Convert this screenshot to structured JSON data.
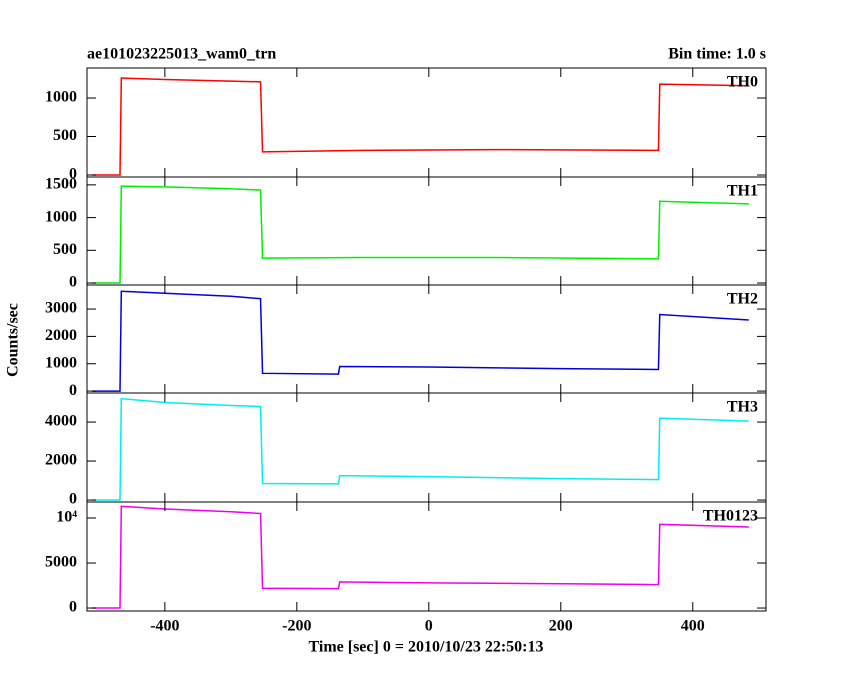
{
  "page": {
    "title": "ae101023225013_wam0_trn",
    "bin_time": "Bin time: 1.0 s",
    "ylabel": "Counts/sec",
    "xlabel": "Time [sec] 0 = 2010/10/23 22:50:13"
  },
  "chart_data": [
    {
      "type": "line",
      "x": [
        -510,
        -468,
        -466,
        -400,
        -300,
        -255,
        -252,
        -100,
        100,
        348,
        350,
        485
      ],
      "series": [
        {
          "name": "TH0",
          "color": "#ff0000",
          "values": [
            0,
            0,
            1260,
            1240,
            1220,
            1210,
            300,
            320,
            330,
            320,
            1180,
            1160
          ]
        }
      ],
      "xlim": [
        -518,
        511
      ],
      "xticks": [
        -400,
        -200,
        0,
        200,
        400
      ],
      "ylim": [
        -26,
        1390
      ],
      "yticks": [
        0,
        500,
        1000
      ]
    },
    {
      "type": "line",
      "x": [
        -510,
        -468,
        -466,
        -400,
        -300,
        -255,
        -252,
        -100,
        100,
        348,
        350,
        485
      ],
      "series": [
        {
          "name": "TH1",
          "color": "#00ee00",
          "values": [
            0,
            0,
            1480,
            1470,
            1440,
            1420,
            380,
            390,
            390,
            370,
            1250,
            1210
          ]
        }
      ],
      "xlim": [
        -518,
        511
      ],
      "xticks": [
        -400,
        -200,
        0,
        200,
        400
      ],
      "ylim": [
        -30,
        1620
      ],
      "yticks": [
        0,
        500,
        1000,
        1500
      ]
    },
    {
      "type": "line",
      "x": [
        -510,
        -468,
        -466,
        -400,
        -300,
        -255,
        -252,
        -137,
        -135,
        0,
        200,
        348,
        350,
        485
      ],
      "series": [
        {
          "name": "TH2",
          "color": "#0000dd",
          "values": [
            0,
            0,
            3650,
            3580,
            3470,
            3380,
            650,
            620,
            900,
            880,
            820,
            790,
            2800,
            2600
          ]
        }
      ],
      "xlim": [
        -518,
        511
      ],
      "xticks": [
        -400,
        -200,
        0,
        200,
        400
      ],
      "ylim": [
        -70,
        3880
      ],
      "yticks": [
        0,
        1000,
        2000,
        3000
      ]
    },
    {
      "type": "line",
      "x": [
        -510,
        -468,
        -466,
        -400,
        -300,
        -255,
        -252,
        -137,
        -135,
        0,
        200,
        348,
        350,
        485
      ],
      "series": [
        {
          "name": "TH3",
          "color": "#00eeee",
          "values": [
            0,
            0,
            5200,
            5000,
            4850,
            4800,
            850,
            830,
            1250,
            1200,
            1100,
            1050,
            4200,
            4050
          ]
        }
      ],
      "xlim": [
        -518,
        511
      ],
      "xticks": [
        -400,
        -200,
        0,
        200,
        400
      ],
      "ylim": [
        -100,
        5490
      ],
      "yticks": [
        0,
        2000,
        4000
      ]
    },
    {
      "type": "line",
      "x": [
        -510,
        -468,
        -466,
        -400,
        -300,
        -255,
        -252,
        -137,
        -135,
        0,
        200,
        348,
        350,
        485
      ],
      "series": [
        {
          "name": "TH0123",
          "color": "#ee00ee",
          "values": [
            0,
            0,
            11300,
            11000,
            10700,
            10500,
            2200,
            2150,
            2900,
            2800,
            2700,
            2600,
            9300,
            9000
          ]
        }
      ],
      "xlim": [
        -518,
        511
      ],
      "xticks": [
        -400,
        -200,
        0,
        200,
        400
      ],
      "ylim": [
        -330,
        11780
      ],
      "yticks": [
        0,
        5000,
        {
          "value": 10000,
          "label": "10⁴"
        }
      ]
    }
  ]
}
